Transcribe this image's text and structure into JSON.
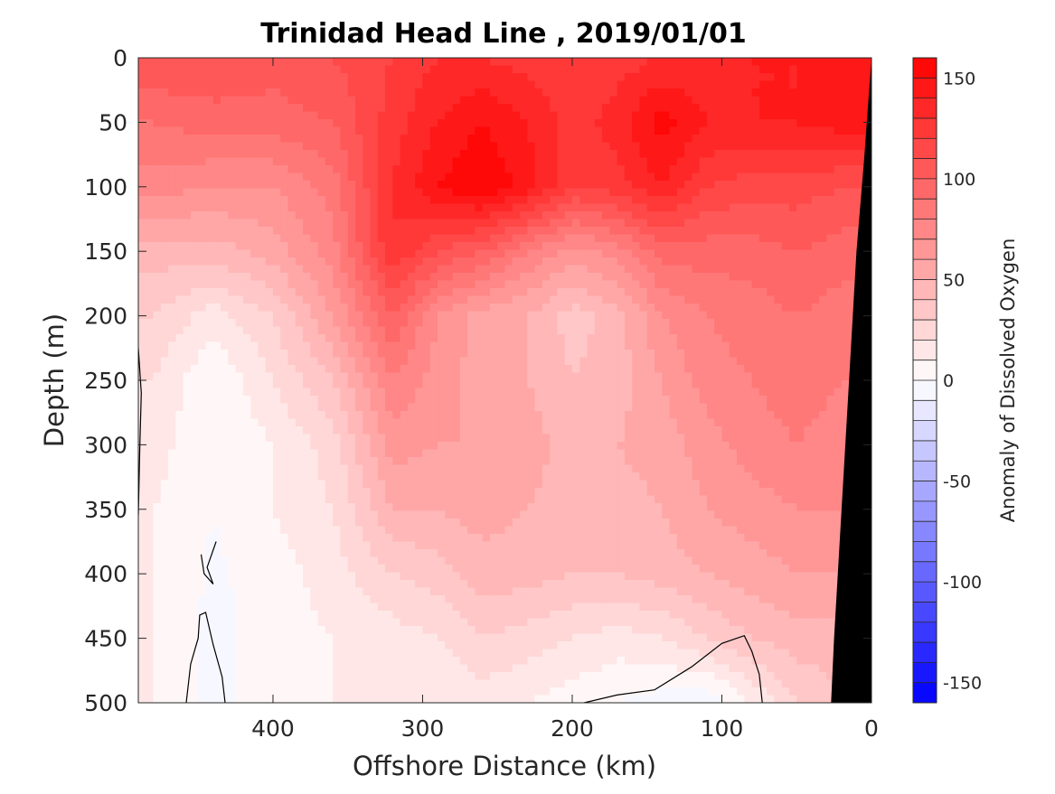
{
  "chart_data": {
    "type": "heatmap",
    "title": "Trinidad Head Line , 2019/01/01",
    "xlabel": "Offshore Distance (km)",
    "ylabel": "Depth (m)",
    "xlim": [
      490,
      0
    ],
    "ylim": [
      0,
      500
    ],
    "x_reversed": true,
    "y_reversed": true,
    "x_ticks": [
      400,
      300,
      200,
      100,
      0
    ],
    "y_ticks": [
      0,
      50,
      100,
      150,
      200,
      250,
      300,
      350,
      400,
      450,
      500
    ],
    "colorbar": {
      "label": "Anomaly of Dissolved Oxygen",
      "range": [
        -160,
        160
      ],
      "ticks": [
        150,
        100,
        50,
        0,
        -50,
        -100,
        -150
      ],
      "level_step": 10,
      "colormap": "blue-white-red",
      "color_low": "#0000ff",
      "color_mid": "#ffffff",
      "color_high": "#ff0000"
    },
    "field": {
      "x": [
        480,
        440,
        400,
        360,
        320,
        290,
        260,
        230,
        200,
        170,
        140,
        110,
        80,
        50,
        20
      ],
      "depth": [
        0,
        50,
        100,
        150,
        200,
        250,
        300,
        350,
        400,
        450,
        500
      ],
      "values": [
        [
          110,
          110,
          105,
          110,
          120,
          130,
          130,
          125,
          120,
          125,
          130,
          130,
          140,
          140,
          150
        ],
        [
          90,
          95,
          95,
          100,
          125,
          140,
          150,
          140,
          125,
          135,
          155,
          140,
          140,
          140,
          145
        ],
        [
          75,
          70,
          70,
          85,
          130,
          150,
          160,
          145,
          120,
          125,
          140,
          120,
          115,
          115,
          110
        ],
        [
          45,
          45,
          55,
          75,
          130,
          110,
          100,
          80,
          65,
          75,
          95,
          95,
          95,
          100,
          95
        ],
        [
          30,
          15,
          30,
          60,
          100,
          70,
          55,
          50,
          35,
          45,
          70,
          80,
          85,
          90,
          85
        ],
        [
          20,
          0,
          20,
          40,
          80,
          65,
          55,
          50,
          40,
          45,
          60,
          75,
          80,
          85,
          80
        ],
        [
          15,
          0,
          10,
          25,
          65,
          60,
          60,
          55,
          45,
          50,
          55,
          65,
          75,
          80,
          75
        ],
        [
          10,
          0,
          10,
          20,
          50,
          50,
          55,
          50,
          45,
          45,
          50,
          60,
          65,
          70,
          70
        ],
        [
          10,
          -2,
          5,
          15,
          30,
          35,
          45,
          45,
          40,
          40,
          45,
          50,
          55,
          60,
          60
        ],
        [
          10,
          -3,
          5,
          10,
          15,
          20,
          30,
          25,
          20,
          15,
          20,
          30,
          40,
          45,
          45
        ],
        [
          10,
          -3,
          5,
          10,
          10,
          10,
          15,
          10,
          5,
          0,
          -5,
          -8,
          10,
          30,
          40
        ]
      ]
    },
    "topography": {
      "color": "#000000",
      "bottom_depth_km": [
        [
          0,
          0
        ],
        [
          5,
          80
        ],
        [
          10,
          150
        ],
        [
          15,
          250
        ],
        [
          20,
          350
        ],
        [
          25,
          450
        ],
        [
          27,
          500
        ]
      ]
    },
    "zero_contours": [
      {
        "points": [
          [
            490,
            225
          ],
          [
            488,
            260
          ],
          [
            489,
            300
          ],
          [
            490,
            355
          ]
        ]
      },
      {
        "points": [
          [
            438,
            375
          ],
          [
            444,
            395
          ],
          [
            440,
            408
          ],
          [
            446,
            400
          ],
          [
            448,
            385
          ]
        ]
      },
      {
        "points": [
          [
            432,
            500
          ],
          [
            434,
            480
          ],
          [
            440,
            455
          ],
          [
            445,
            430
          ],
          [
            449,
            432
          ],
          [
            450,
            450
          ],
          [
            455,
            470
          ],
          [
            458,
            500
          ]
        ]
      },
      {
        "points": [
          [
            192,
            500
          ],
          [
            170,
            494
          ],
          [
            145,
            490
          ],
          [
            120,
            472
          ],
          [
            100,
            454
          ],
          [
            85,
            448
          ],
          [
            80,
            460
          ],
          [
            75,
            478
          ],
          [
            73,
            500
          ]
        ]
      }
    ]
  }
}
